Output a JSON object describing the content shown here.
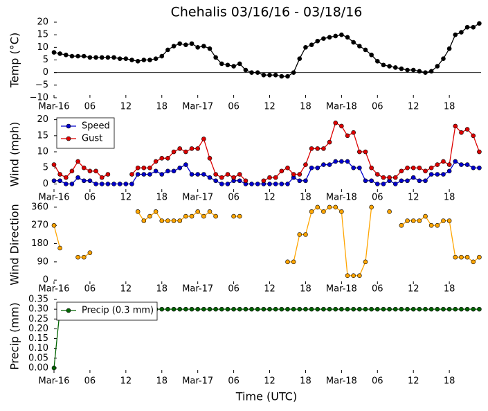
{
  "chart_data": [
    {
      "type": "line",
      "title": "Chehalis 03/16/16 - 03/18/16",
      "ylabel": "Temp (°C)",
      "x": [
        0,
        1,
        2,
        3,
        4,
        5,
        6,
        7,
        8,
        9,
        10,
        11,
        12,
        13,
        14,
        15,
        16,
        17,
        18,
        19,
        20,
        21,
        22,
        23,
        24,
        25,
        26,
        27,
        28,
        29,
        30,
        31,
        32,
        33,
        34,
        35,
        36,
        37,
        38,
        39,
        40,
        41,
        42,
        43,
        44,
        45,
        46,
        47,
        48,
        49,
        50,
        51,
        52,
        53,
        54,
        55,
        56,
        57,
        58,
        59,
        60,
        61,
        62,
        63,
        64,
        65,
        66,
        67,
        68,
        69,
        70,
        71
      ],
      "xlim": [
        0,
        71.3
      ],
      "xticks": [
        {
          "value": 0,
          "label": "Mar-16"
        },
        {
          "value": 6,
          "label": "06"
        },
        {
          "value": 12,
          "label": "12"
        },
        {
          "value": 18,
          "label": "18"
        },
        {
          "value": 24,
          "label": "Mar-17"
        },
        {
          "value": 30,
          "label": "06"
        },
        {
          "value": 36,
          "label": "12"
        },
        {
          "value": 42,
          "label": "18"
        },
        {
          "value": 48,
          "label": "Mar-18"
        },
        {
          "value": 54,
          "label": "06"
        },
        {
          "value": 60,
          "label": "12"
        },
        {
          "value": 66,
          "label": "18"
        }
      ],
      "ylim": [
        -10,
        20
      ],
      "yticks": [
        {
          "value": -10,
          "label": "−10"
        },
        {
          "value": -5,
          "label": "−5"
        },
        0,
        5,
        10,
        15,
        20
      ],
      "zero_line": true,
      "series": [
        {
          "color": "#000000",
          "values": [
            8,
            7.5,
            7,
            6.5,
            6.5,
            6.5,
            6,
            6,
            6,
            6,
            6,
            5.5,
            5.5,
            5,
            4.5,
            5,
            5,
            5.5,
            6.5,
            9,
            10.5,
            11.5,
            11,
            11.5,
            10,
            10.5,
            9.5,
            6,
            3.5,
            3,
            2.5,
            3.5,
            1,
            0,
            0,
            -1,
            -1,
            -1,
            -1.5,
            -1.5,
            0,
            5.5,
            10,
            11,
            12.5,
            13.5,
            14,
            14.5,
            15,
            14,
            12,
            10.5,
            9,
            7,
            4.5,
            3,
            2.5,
            2,
            1.5,
            1,
            1,
            0.5,
            0,
            0.5,
            2.5,
            5.5,
            9.5,
            15,
            16,
            18,
            18,
            19.5
          ]
        }
      ]
    },
    {
      "type": "line",
      "ylabel": "Wind (mph)",
      "legend": "upper left",
      "x": [
        0,
        1,
        2,
        3,
        4,
        5,
        6,
        7,
        8,
        9,
        10,
        11,
        12,
        13,
        14,
        15,
        16,
        17,
        18,
        19,
        20,
        21,
        22,
        23,
        24,
        25,
        26,
        27,
        28,
        29,
        30,
        31,
        32,
        33,
        34,
        35,
        36,
        37,
        38,
        39,
        40,
        41,
        42,
        43,
        44,
        45,
        46,
        47,
        48,
        49,
        50,
        51,
        52,
        53,
        54,
        55,
        56,
        57,
        58,
        59,
        60,
        61,
        62,
        63,
        64,
        65,
        66,
        67,
        68,
        69,
        70,
        71
      ],
      "xlim": [
        0,
        71.3
      ],
      "xticks": [
        {
          "value": 0,
          "label": "Mar-16"
        },
        {
          "value": 6,
          "label": "06"
        },
        {
          "value": 12,
          "label": "12"
        },
        {
          "value": 18,
          "label": "18"
        },
        {
          "value": 24,
          "label": "Mar-17"
        },
        {
          "value": 30,
          "label": "06"
        },
        {
          "value": 36,
          "label": "12"
        },
        {
          "value": 42,
          "label": "18"
        },
        {
          "value": 48,
          "label": "Mar-18"
        },
        {
          "value": 54,
          "label": "06"
        },
        {
          "value": 60,
          "label": "12"
        },
        {
          "value": 66,
          "label": "18"
        }
      ],
      "ylim": [
        -2.5,
        21
      ],
      "yticks": [
        0,
        5,
        10,
        15,
        20
      ],
      "series": [
        {
          "name": "Speed",
          "color": "#0000cc",
          "values": [
            1,
            1,
            0,
            0,
            2,
            1,
            1,
            0,
            0,
            0,
            0,
            0,
            0,
            0,
            3,
            3,
            3,
            4,
            3,
            4,
            4,
            5,
            6,
            3,
            3,
            3,
            2,
            1,
            0,
            0,
            1,
            1,
            0,
            0,
            0,
            0,
            0,
            0,
            0,
            0,
            2,
            1,
            1,
            5,
            5,
            6,
            6,
            7,
            7,
            7,
            5,
            5,
            1,
            1,
            0,
            0,
            1,
            0,
            1,
            1,
            2,
            1,
            1,
            3,
            3,
            3,
            4,
            7,
            6,
            6,
            5,
            5
          ]
        },
        {
          "name": "Gust",
          "color": "#dd0000",
          "values": [
            6,
            3,
            2,
            4,
            7,
            5,
            4,
            4,
            2,
            3,
            null,
            null,
            null,
            3,
            5,
            5,
            5,
            7,
            8,
            8,
            10,
            11,
            10,
            11,
            11,
            14,
            8,
            3,
            2,
            3,
            2,
            3,
            1,
            null,
            null,
            1,
            2,
            2,
            4,
            5,
            3,
            3,
            6,
            11,
            11,
            11,
            13,
            19,
            18,
            15,
            16,
            10,
            10,
            5,
            3,
            2,
            2,
            2,
            4,
            5,
            5,
            5,
            4,
            5,
            6,
            7,
            6,
            18,
            16,
            17,
            15,
            10
          ]
        }
      ]
    },
    {
      "type": "line",
      "ylabel": "Wind Direction",
      "x": [
        0,
        1,
        2,
        3,
        4,
        5,
        6,
        7,
        8,
        9,
        10,
        11,
        12,
        13,
        14,
        15,
        16,
        17,
        18,
        19,
        20,
        21,
        22,
        23,
        24,
        25,
        26,
        27,
        28,
        29,
        30,
        31,
        32,
        33,
        34,
        35,
        36,
        37,
        38,
        39,
        40,
        41,
        42,
        43,
        44,
        45,
        46,
        47,
        48,
        49,
        50,
        51,
        52,
        53,
        54,
        55,
        56,
        57,
        58,
        59,
        60,
        61,
        62,
        63,
        64,
        65,
        66,
        67,
        68,
        69,
        70,
        71
      ],
      "xlim": [
        0,
        71.3
      ],
      "xticks": [
        {
          "value": 0,
          "label": "Mar-16"
        },
        {
          "value": 6,
          "label": "06"
        },
        {
          "value": 12,
          "label": "12"
        },
        {
          "value": 18,
          "label": "18"
        },
        {
          "value": 24,
          "label": "Mar-17"
        },
        {
          "value": 30,
          "label": "06"
        },
        {
          "value": 36,
          "label": "12"
        },
        {
          "value": 42,
          "label": "18"
        },
        {
          "value": 48,
          "label": "Mar-18"
        },
        {
          "value": 54,
          "label": "06"
        },
        {
          "value": 60,
          "label": "12"
        },
        {
          "value": 66,
          "label": "18"
        }
      ],
      "ylim": [
        -20,
        370
      ],
      "yticks": [
        0,
        90,
        180,
        270,
        360
      ],
      "series": [
        {
          "color": "#ffa500",
          "values": [
            270,
            158,
            null,
            null,
            113,
            113,
            135,
            null,
            null,
            null,
            null,
            null,
            null,
            null,
            338,
            293,
            315,
            338,
            293,
            293,
            293,
            293,
            315,
            315,
            338,
            315,
            338,
            315,
            null,
            null,
            315,
            315,
            null,
            null,
            null,
            null,
            null,
            null,
            null,
            90,
            90,
            225,
            225,
            338,
            360,
            338,
            360,
            360,
            338,
            22,
            22,
            22,
            90,
            360,
            null,
            null,
            338,
            null,
            270,
            293,
            293,
            293,
            315,
            270,
            270,
            293,
            293,
            113,
            113,
            113,
            90,
            113
          ]
        }
      ]
    },
    {
      "type": "line",
      "ylabel": "Precip (mm)",
      "xlabel": "Time (UTC)",
      "legend": "upper left",
      "x": [
        0,
        1,
        2,
        3,
        4,
        5,
        6,
        7,
        8,
        9,
        10,
        11,
        12,
        13,
        14,
        15,
        16,
        17,
        18,
        19,
        20,
        21,
        22,
        23,
        24,
        25,
        26,
        27,
        28,
        29,
        30,
        31,
        32,
        33,
        34,
        35,
        36,
        37,
        38,
        39,
        40,
        41,
        42,
        43,
        44,
        45,
        46,
        47,
        48,
        49,
        50,
        51,
        52,
        53,
        54,
        55,
        56,
        57,
        58,
        59,
        60,
        61,
        62,
        63,
        64,
        65,
        66,
        67,
        68,
        69,
        70,
        71
      ],
      "xlim": [
        0,
        71.3
      ],
      "xticks": [
        {
          "value": 0,
          "label": "Mar-16"
        },
        {
          "value": 6,
          "label": "06"
        },
        {
          "value": 12,
          "label": "12"
        },
        {
          "value": 18,
          "label": "18"
        },
        {
          "value": 24,
          "label": "Mar-17"
        },
        {
          "value": 30,
          "label": "06"
        },
        {
          "value": 36,
          "label": "12"
        },
        {
          "value": 42,
          "label": "18"
        },
        {
          "value": 48,
          "label": "Mar-18"
        },
        {
          "value": 54,
          "label": "06"
        },
        {
          "value": 60,
          "label": "12"
        },
        {
          "value": 66,
          "label": "18"
        }
      ],
      "ylim": [
        -0.025,
        0.35
      ],
      "yticks": [
        {
          "value": 0,
          "label": "0.00"
        },
        0.05,
        {
          "value": 0.1,
          "label": "0.10"
        },
        0.15,
        {
          "value": 0.2,
          "label": "0.20"
        },
        0.25,
        {
          "value": 0.3,
          "label": "0.30"
        },
        0.35
      ],
      "series": [
        {
          "name": "Precip (0.3 mm)",
          "color": "#006400",
          "values": [
            0,
            0.3,
            0.3,
            0.3,
            0.3,
            0.3,
            0.3,
            0.3,
            0.3,
            0.3,
            0.3,
            0.3,
            0.3,
            0.3,
            0.3,
            0.3,
            0.3,
            0.3,
            0.3,
            0.3,
            0.3,
            0.3,
            0.3,
            0.3,
            0.3,
            0.3,
            0.3,
            0.3,
            0.3,
            0.3,
            0.3,
            0.3,
            0.3,
            0.3,
            0.3,
            0.3,
            0.3,
            0.3,
            0.3,
            0.3,
            0.3,
            0.3,
            0.3,
            0.3,
            0.3,
            0.3,
            0.3,
            0.3,
            0.3,
            0.3,
            0.3,
            0.3,
            0.3,
            0.3,
            0.3,
            0.3,
            0.3,
            0.3,
            0.3,
            0.3,
            0.3,
            0.3,
            0.3,
            0.3,
            0.3,
            0.3,
            0.3,
            0.3,
            0.3,
            0.3,
            0.3,
            0.3
          ]
        }
      ]
    }
  ]
}
